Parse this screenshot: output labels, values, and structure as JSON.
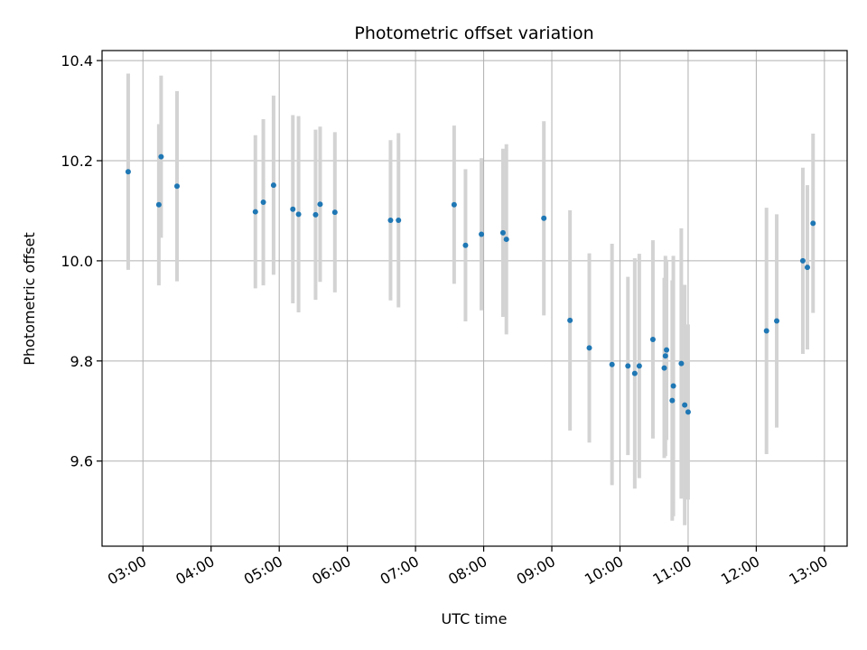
{
  "chart_data": {
    "type": "scatter",
    "title": "Photometric offset variation",
    "xlabel": "UTC time",
    "ylabel": "Photometric offset",
    "x_tick_labels": [
      "03:00",
      "04:00",
      "05:00",
      "06:00",
      "07:00",
      "08:00",
      "09:00",
      "10:00",
      "11:00",
      "12:00",
      "13:00"
    ],
    "y_tick_labels": [
      "9.6",
      "9.8",
      "10.0",
      "10.2",
      "10.4"
    ],
    "y_ticks": [
      9.6,
      9.8,
      10.0,
      10.2,
      10.4
    ],
    "x_range": [
      "02:24",
      "13:20"
    ],
    "ylim": [
      9.43,
      10.42
    ],
    "grid": true,
    "marker_color": "#1f77b4",
    "errorbar_color": "#d3d3d3",
    "points": [
      {
        "x": "02:47",
        "y": 10.178,
        "err": 0.196
      },
      {
        "x": "03:14",
        "y": 10.112,
        "err": 0.161
      },
      {
        "x": "03:16",
        "y": 10.208,
        "err": 0.162
      },
      {
        "x": "03:30",
        "y": 10.149,
        "err": 0.19
      },
      {
        "x": "04:39",
        "y": 10.098,
        "err": 0.153
      },
      {
        "x": "04:46",
        "y": 10.117,
        "err": 0.166
      },
      {
        "x": "04:55",
        "y": 10.151,
        "err": 0.179
      },
      {
        "x": "05:12",
        "y": 10.103,
        "err": 0.188
      },
      {
        "x": "05:17",
        "y": 10.093,
        "err": 0.196
      },
      {
        "x": "05:32",
        "y": 10.092,
        "err": 0.17
      },
      {
        "x": "05:36",
        "y": 10.113,
        "err": 0.155
      },
      {
        "x": "05:49",
        "y": 10.097,
        "err": 0.16
      },
      {
        "x": "06:38",
        "y": 10.081,
        "err": 0.16
      },
      {
        "x": "06:45",
        "y": 10.081,
        "err": 0.174
      },
      {
        "x": "07:34",
        "y": 10.112,
        "err": 0.158
      },
      {
        "x": "07:44",
        "y": 10.031,
        "err": 0.152
      },
      {
        "x": "07:58",
        "y": 10.053,
        "err": 0.152
      },
      {
        "x": "08:17",
        "y": 10.056,
        "err": 0.168
      },
      {
        "x": "08:20",
        "y": 10.043,
        "err": 0.19
      },
      {
        "x": "08:53",
        "y": 10.085,
        "err": 0.194
      },
      {
        "x": "09:16",
        "y": 9.881,
        "err": 0.22
      },
      {
        "x": "09:33",
        "y": 9.826,
        "err": 0.189
      },
      {
        "x": "09:53",
        "y": 9.793,
        "err": 0.241
      },
      {
        "x": "10:07",
        "y": 9.79,
        "err": 0.178
      },
      {
        "x": "10:13",
        "y": 9.775,
        "err": 0.23
      },
      {
        "x": "10:17",
        "y": 9.79,
        "err": 0.224
      },
      {
        "x": "10:29",
        "y": 9.843,
        "err": 0.198
      },
      {
        "x": "10:39",
        "y": 9.786,
        "err": 0.18
      },
      {
        "x": "10:40",
        "y": 9.81,
        "err": 0.2
      },
      {
        "x": "10:41",
        "y": 9.822,
        "err": 0.18
      },
      {
        "x": "10:46",
        "y": 9.721,
        "err": 0.24
      },
      {
        "x": "10:47",
        "y": 9.75,
        "err": 0.26
      },
      {
        "x": "10:54",
        "y": 9.795,
        "err": 0.27
      },
      {
        "x": "10:57",
        "y": 9.712,
        "err": 0.24
      },
      {
        "x": "11:00",
        "y": 9.698,
        "err": 0.175
      },
      {
        "x": "12:09",
        "y": 9.86,
        "err": 0.246
      },
      {
        "x": "12:18",
        "y": 9.88,
        "err": 0.213
      },
      {
        "x": "12:41",
        "y": 10.0,
        "err": 0.186
      },
      {
        "x": "12:45",
        "y": 9.987,
        "err": 0.164
      },
      {
        "x": "12:50",
        "y": 10.075,
        "err": 0.179
      }
    ]
  }
}
